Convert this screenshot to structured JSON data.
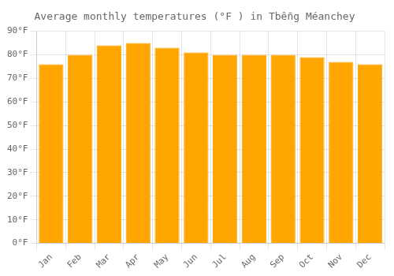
{
  "chart_data": {
    "type": "bar",
    "title": "Average monthly temperatures (°F ) in Tbê̄ng Méanchey",
    "categories": [
      "Jan",
      "Feb",
      "Mar",
      "Apr",
      "May",
      "Jun",
      "Jul",
      "Aug",
      "Sep",
      "Oct",
      "Nov",
      "Dec"
    ],
    "values": [
      76,
      80,
      84,
      85,
      83,
      81,
      80,
      80,
      80,
      79,
      77,
      76
    ],
    "color": "#FFA500",
    "ylim": [
      0,
      90
    ],
    "yticks": [
      {
        "value": 0,
        "label": "0°F"
      },
      {
        "value": 10,
        "label": "10°F"
      },
      {
        "value": 20,
        "label": "20°F"
      },
      {
        "value": 30,
        "label": "30°F"
      },
      {
        "value": 40,
        "label": "40°F"
      },
      {
        "value": 50,
        "label": "50°F"
      },
      {
        "value": 60,
        "label": "60°F"
      },
      {
        "value": 70,
        "label": "70°F"
      },
      {
        "value": 80,
        "label": "80°F"
      },
      {
        "value": 90,
        "label": "90°F"
      }
    ],
    "grid": true
  }
}
